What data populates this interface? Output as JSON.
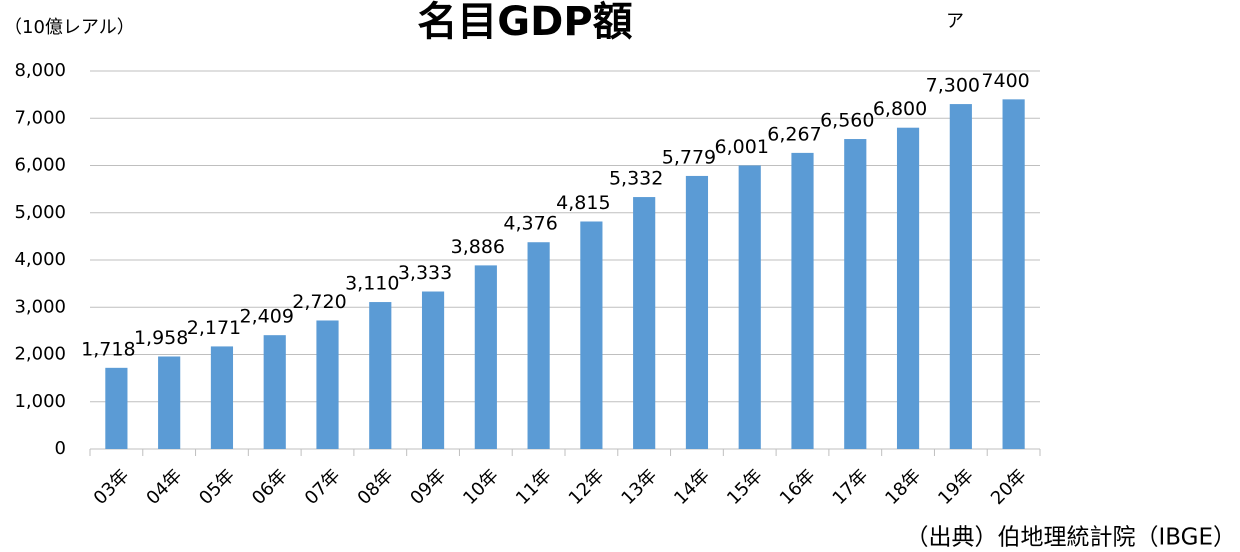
{
  "chart_data": {
    "type": "bar",
    "title": "名目GDP額",
    "y_unit_label": "（10億レアル）",
    "source": "（出典）伯地理統計院（IBGE）",
    "annotations": [
      "ア"
    ],
    "categories": [
      "03年",
      "04年",
      "05年",
      "06年",
      "07年",
      "08年",
      "09年",
      "10年",
      "11年",
      "12年",
      "13年",
      "14年",
      "15年",
      "16年",
      "17年",
      "18年",
      "19年",
      "20年"
    ],
    "values": [
      1718,
      1958,
      2171,
      2409,
      2720,
      3110,
      3333,
      3886,
      4376,
      4815,
      5332,
      5779,
      6001,
      6267,
      6560,
      6800,
      7300,
      7400
    ],
    "value_labels": [
      "1,718",
      "1,958",
      "2,171",
      "2,409",
      "2,720",
      "3,110",
      "3,333",
      "3,886",
      "4,376",
      "4,815",
      "5,332",
      "5,779",
      "6,001",
      "6,267",
      "6,560",
      "6,800",
      "7,300",
      "7400"
    ],
    "color": "#5b9bd5",
    "ylim": [
      0,
      8000
    ],
    "yticks": [
      0,
      {
        "value": 1000,
        "label": "1,000"
      },
      {
        "value": 2000,
        "label": "2,000"
      },
      {
        "value": 3000,
        "label": "3,000"
      },
      {
        "value": 4000,
        "label": "4,000"
      },
      {
        "value": 5000,
        "label": "5,000"
      },
      {
        "value": 6000,
        "label": "6,000"
      },
      {
        "value": 7000,
        "label": "7,000"
      },
      {
        "value": 8000,
        "label": "8,000"
      }
    ],
    "grid": true
  }
}
